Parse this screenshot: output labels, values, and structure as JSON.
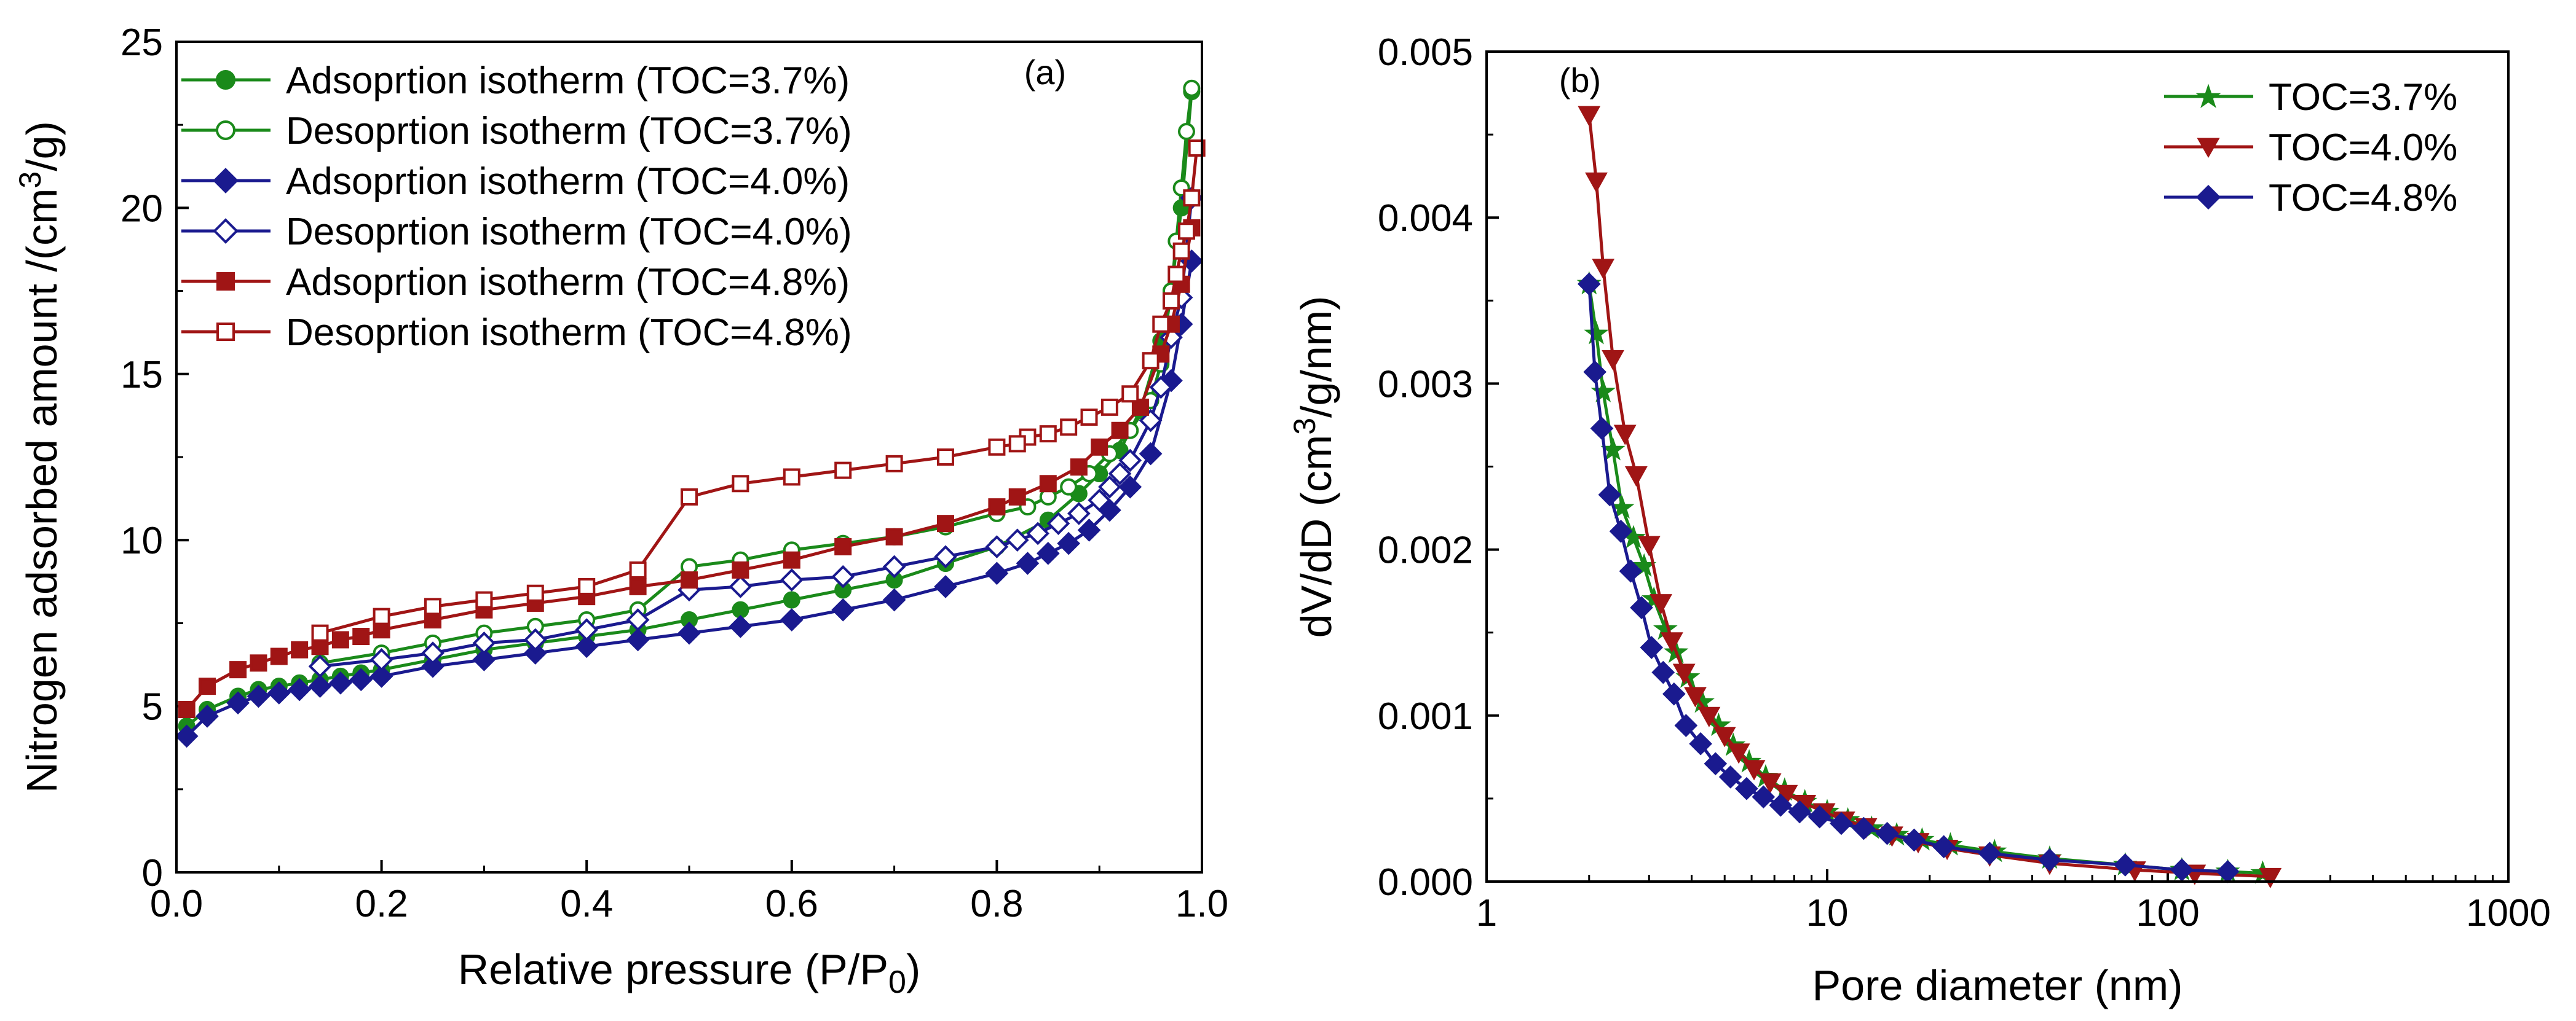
{
  "colors": {
    "green": "#1a8a1a",
    "navy": "#1a1a8f",
    "red": "#a01515",
    "axis": "#000000"
  },
  "chart_data": [
    {
      "type": "line",
      "panel_label": "(a)",
      "xlabel_main": "Relative pressure (P/P",
      "xlabel_sub": "0",
      "xlabel_tail": ")",
      "ylabel_main": "Nitrogen adsorbed amount /(cm",
      "ylabel_sup": "3",
      "ylabel_tail": "/g)",
      "xlim": [
        0.0,
        1.0
      ],
      "ylim": [
        0,
        25
      ],
      "xticks": [
        0.0,
        0.2,
        0.4,
        0.6,
        0.8,
        1.0
      ],
      "xtick_labels": [
        "0.0",
        "0.2",
        "0.4",
        "0.6",
        "0.8",
        "1.0"
      ],
      "yticks": [
        0,
        5,
        10,
        15,
        20,
        25
      ],
      "ytick_labels": [
        "0",
        "5",
        "10",
        "15",
        "20",
        "25"
      ],
      "legend_position": "top-left",
      "series": [
        {
          "name": "Adsoprtion isotherm (TOC=3.7%)",
          "color": "green",
          "marker": "circle",
          "filled": true,
          "x": [
            0.01,
            0.03,
            0.06,
            0.08,
            0.1,
            0.12,
            0.14,
            0.16,
            0.18,
            0.2,
            0.25,
            0.3,
            0.35,
            0.4,
            0.45,
            0.5,
            0.55,
            0.6,
            0.65,
            0.7,
            0.75,
            0.8,
            0.85,
            0.88,
            0.9,
            0.92,
            0.94,
            0.96,
            0.97,
            0.98,
            0.99
          ],
          "y": [
            4.4,
            4.9,
            5.3,
            5.5,
            5.6,
            5.7,
            5.8,
            5.9,
            6.0,
            6.1,
            6.4,
            6.7,
            6.9,
            7.1,
            7.3,
            7.6,
            7.9,
            8.2,
            8.5,
            8.8,
            9.3,
            9.8,
            10.6,
            11.4,
            12.0,
            12.7,
            13.9,
            16.0,
            17.5,
            20.0,
            23.5
          ]
        },
        {
          "name": "Desoprtion isotherm (TOC=3.7%)",
          "color": "green",
          "marker": "circle",
          "filled": false,
          "x": [
            0.99,
            0.985,
            0.98,
            0.975,
            0.97,
            0.96,
            0.95,
            0.93,
            0.91,
            0.89,
            0.87,
            0.85,
            0.83,
            0.8,
            0.75,
            0.7,
            0.65,
            0.6,
            0.55,
            0.5,
            0.45,
            0.4,
            0.35,
            0.3,
            0.25,
            0.2,
            0.14
          ],
          "y": [
            23.6,
            22.3,
            20.6,
            19.0,
            17.5,
            15.3,
            14.2,
            13.3,
            12.6,
            12.0,
            11.6,
            11.3,
            11.0,
            10.8,
            10.4,
            10.1,
            9.9,
            9.7,
            9.4,
            9.2,
            7.9,
            7.6,
            7.4,
            7.2,
            6.9,
            6.6,
            6.3
          ]
        },
        {
          "name": "Adsoprtion isotherm (TOC=4.0%)",
          "color": "navy",
          "marker": "diamond",
          "filled": true,
          "x": [
            0.01,
            0.03,
            0.06,
            0.08,
            0.1,
            0.12,
            0.14,
            0.16,
            0.18,
            0.2,
            0.25,
            0.3,
            0.35,
            0.4,
            0.45,
            0.5,
            0.55,
            0.6,
            0.65,
            0.7,
            0.75,
            0.8,
            0.83,
            0.85,
            0.87,
            0.89,
            0.91,
            0.93,
            0.95,
            0.97,
            0.98,
            0.99
          ],
          "y": [
            4.1,
            4.7,
            5.1,
            5.3,
            5.4,
            5.5,
            5.6,
            5.7,
            5.8,
            5.9,
            6.2,
            6.4,
            6.6,
            6.8,
            7.0,
            7.2,
            7.4,
            7.6,
            7.9,
            8.2,
            8.6,
            9.0,
            9.3,
            9.6,
            9.9,
            10.3,
            10.9,
            11.6,
            12.6,
            14.8,
            16.5,
            18.4
          ]
        },
        {
          "name": "Desoprtion isotherm (TOC=4.0%)",
          "color": "navy",
          "marker": "diamond",
          "filled": false,
          "x": [
            0.99,
            0.98,
            0.97,
            0.96,
            0.95,
            0.93,
            0.92,
            0.91,
            0.9,
            0.88,
            0.86,
            0.84,
            0.82,
            0.8,
            0.75,
            0.7,
            0.65,
            0.6,
            0.55,
            0.5,
            0.45,
            0.4,
            0.35,
            0.3,
            0.25,
            0.2,
            0.14
          ],
          "y": [
            20.3,
            17.3,
            16.1,
            14.6,
            13.6,
            12.4,
            12.0,
            11.6,
            11.2,
            10.8,
            10.5,
            10.2,
            10.0,
            9.8,
            9.5,
            9.2,
            8.9,
            8.8,
            8.6,
            8.5,
            7.6,
            7.3,
            7.0,
            6.9,
            6.6,
            6.4,
            6.2
          ]
        },
        {
          "name": "Adsoprtion isotherm (TOC=4.8%)",
          "color": "red",
          "marker": "square",
          "filled": true,
          "x": [
            0.01,
            0.03,
            0.06,
            0.08,
            0.1,
            0.12,
            0.14,
            0.16,
            0.18,
            0.2,
            0.25,
            0.3,
            0.35,
            0.4,
            0.45,
            0.5,
            0.55,
            0.6,
            0.65,
            0.7,
            0.75,
            0.8,
            0.82,
            0.85,
            0.88,
            0.9,
            0.92,
            0.94,
            0.96,
            0.97,
            0.98,
            0.99
          ],
          "y": [
            4.9,
            5.6,
            6.1,
            6.3,
            6.5,
            6.7,
            6.8,
            7.0,
            7.1,
            7.3,
            7.6,
            7.9,
            8.1,
            8.3,
            8.6,
            8.8,
            9.1,
            9.4,
            9.8,
            10.1,
            10.5,
            11.0,
            11.3,
            11.7,
            12.2,
            12.8,
            13.3,
            14.0,
            15.6,
            16.5,
            17.7,
            19.4
          ]
        },
        {
          "name": "Desoprtion isotherm (TOC=4.8%)",
          "color": "red",
          "marker": "square",
          "filled": false,
          "x": [
            0.995,
            0.99,
            0.985,
            0.98,
            0.975,
            0.97,
            0.96,
            0.95,
            0.93,
            0.91,
            0.89,
            0.87,
            0.85,
            0.83,
            0.82,
            0.8,
            0.75,
            0.7,
            0.65,
            0.6,
            0.55,
            0.5,
            0.45,
            0.4,
            0.35,
            0.3,
            0.25,
            0.2,
            0.14
          ],
          "y": [
            21.8,
            20.3,
            19.3,
            18.7,
            18.0,
            17.2,
            16.5,
            15.4,
            14.4,
            14.0,
            13.7,
            13.4,
            13.2,
            13.1,
            12.9,
            12.8,
            12.5,
            12.3,
            12.1,
            11.9,
            11.7,
            11.3,
            9.1,
            8.6,
            8.4,
            8.2,
            8.0,
            7.7,
            7.2
          ]
        }
      ]
    },
    {
      "type": "line",
      "xscale": "log",
      "panel_label": "(b)",
      "xlabel_main": "Pore diameter (nm)",
      "ylabel_main": "dV/dD (cm",
      "ylabel_sup": "3",
      "ylabel_tail": "/g/nm)",
      "xlim": [
        1,
        1000
      ],
      "ylim": [
        0.0,
        0.005
      ],
      "xticks": [
        1,
        10,
        100,
        1000
      ],
      "xtick_labels": [
        "1",
        "10",
        "100",
        "1000"
      ],
      "yticks": [
        0.0,
        0.001,
        0.002,
        0.003,
        0.004,
        0.005
      ],
      "ytick_labels": [
        "0.000",
        "0.001",
        "0.002",
        "0.003",
        "0.004",
        "0.005"
      ],
      "legend_position": "top-right",
      "series": [
        {
          "name": "TOC=3.7%",
          "color": "green",
          "marker": "star",
          "filled": true,
          "x": [
            2.0,
            2.1,
            2.2,
            2.35,
            2.5,
            2.7,
            2.9,
            3.1,
            3.35,
            3.6,
            3.9,
            4.3,
            4.8,
            5.3,
            5.9,
            6.6,
            7.5,
            8.6,
            10,
            11.5,
            13.5,
            16,
            19,
            23,
            31,
            45,
            75,
            110,
            150,
            190
          ],
          "y": [
            0.0036,
            0.0033,
            0.00295,
            0.0026,
            0.00225,
            0.00207,
            0.0019,
            0.0017,
            0.00152,
            0.00138,
            0.00123,
            0.00108,
            0.00094,
            0.00082,
            0.00072,
            0.00063,
            0.00055,
            0.00048,
            0.00042,
            0.00037,
            0.00032,
            0.00028,
            0.00025,
            0.00022,
            0.00018,
            0.00014,
            0.0001,
            7e-05,
            6e-05,
            5e-05
          ]
        },
        {
          "name": "TOC=4.0%",
          "color": "red",
          "marker": "triangle-down",
          "filled": true,
          "x": [
            2.0,
            2.1,
            2.2,
            2.35,
            2.55,
            2.75,
            3.0,
            3.25,
            3.5,
            3.8,
            4.1,
            4.5,
            5.0,
            5.5,
            6.1,
            6.8,
            7.6,
            8.6,
            9.8,
            11.2,
            13,
            15.5,
            18.5,
            22.5,
            30,
            45,
            80,
            120,
            200
          ],
          "y": [
            0.00462,
            0.00422,
            0.0037,
            0.00315,
            0.0027,
            0.00245,
            0.00203,
            0.00168,
            0.00145,
            0.00126,
            0.00112,
            0.001,
            0.00088,
            0.00078,
            0.00068,
            0.0006,
            0.00053,
            0.00047,
            0.00042,
            0.00037,
            0.00033,
            0.00028,
            0.00024,
            0.0002,
            0.00016,
            0.00011,
            7e-05,
            5e-05,
            3e-05
          ]
        },
        {
          "name": "TOC=4.8%",
          "color": "navy",
          "marker": "diamond",
          "filled": true,
          "x": [
            2.0,
            2.08,
            2.18,
            2.3,
            2.48,
            2.65,
            2.85,
            3.05,
            3.3,
            3.55,
            3.85,
            4.25,
            4.7,
            5.2,
            5.8,
            6.5,
            7.3,
            8.3,
            9.5,
            11,
            12.8,
            15,
            18,
            22,
            30,
            45,
            75,
            110,
            150
          ],
          "y": [
            0.0036,
            0.00307,
            0.00273,
            0.00233,
            0.00211,
            0.00187,
            0.00165,
            0.00141,
            0.00126,
            0.00113,
            0.00094,
            0.00083,
            0.00071,
            0.00063,
            0.00056,
            0.00051,
            0.00046,
            0.00042,
            0.00039,
            0.00035,
            0.00032,
            0.00029,
            0.00025,
            0.00021,
            0.00017,
            0.00013,
            0.0001,
            7e-05,
            6e-05
          ]
        }
      ]
    }
  ]
}
